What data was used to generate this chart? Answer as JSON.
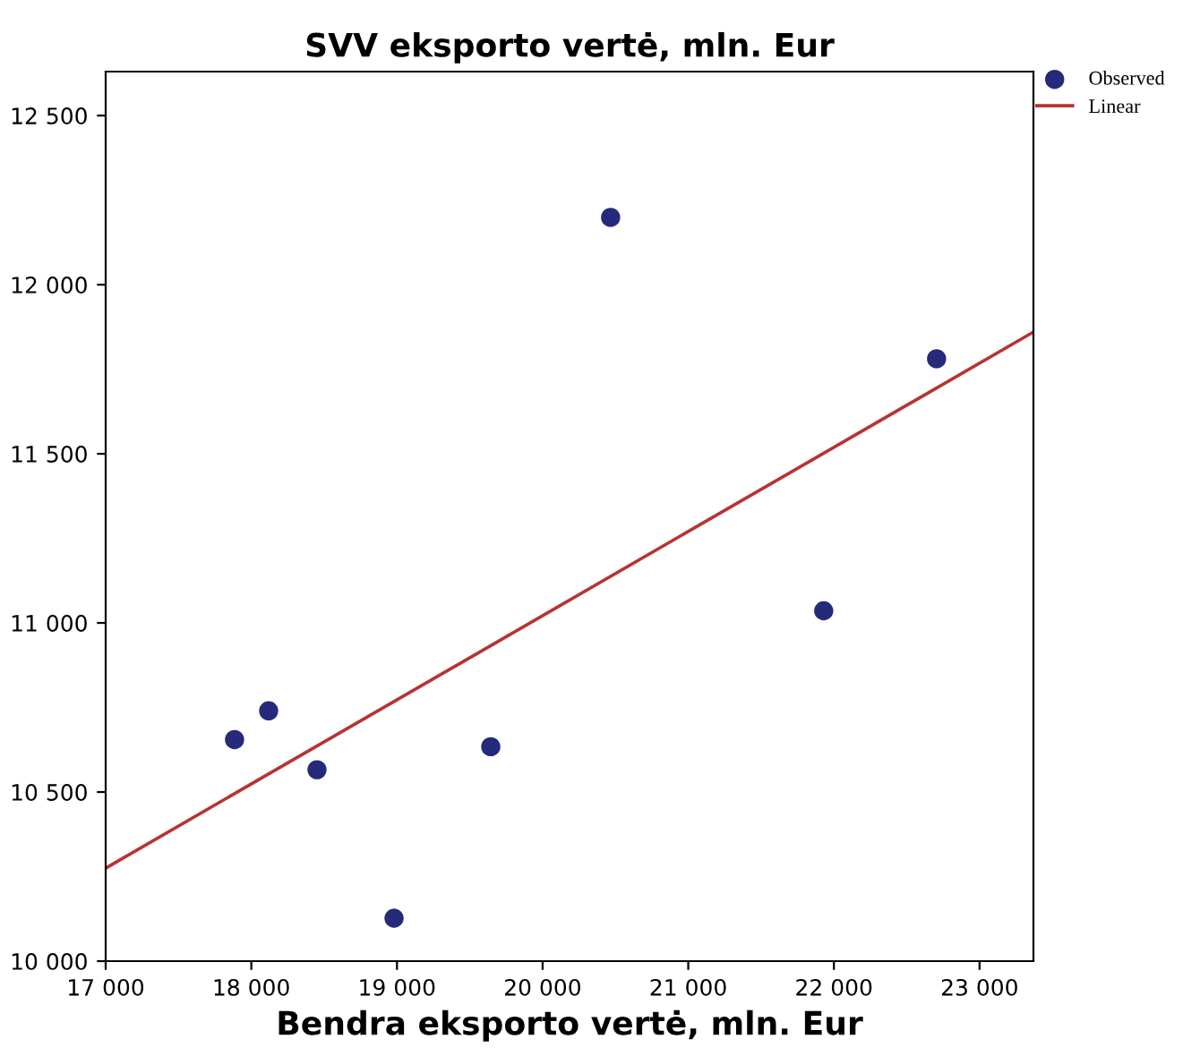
{
  "chart_data": {
    "type": "scatter",
    "title": "SVV eksporto vertė, mln. Eur",
    "xlabel": "Bendra eksporto vertė, mln. Eur",
    "xlim": [
      17000,
      23370
    ],
    "ylim": [
      10000,
      12630
    ],
    "xticks": [
      {
        "value": 17000,
        "label": "17 000"
      },
      {
        "value": 18000,
        "label": "18 000"
      },
      {
        "value": 19000,
        "label": "19 000"
      },
      {
        "value": 20000,
        "label": "20 000"
      },
      {
        "value": 21000,
        "label": "21 000"
      },
      {
        "value": 22000,
        "label": "22 000"
      },
      {
        "value": 23000,
        "label": "23 000"
      }
    ],
    "yticks": [
      {
        "value": 10000,
        "label": "10 000"
      },
      {
        "value": 10500,
        "label": "10 500"
      },
      {
        "value": 11000,
        "label": "11 000"
      },
      {
        "value": 11500,
        "label": "11 500"
      },
      {
        "value": 12000,
        "label": "12 000"
      },
      {
        "value": 12500,
        "label": "12 500"
      }
    ],
    "series": [
      {
        "name": "Observed",
        "color": "#262a7a",
        "marker": "circle",
        "x": [
          17885,
          18119,
          18451,
          18980,
          19644,
          20467,
          21930,
          22705
        ],
        "values": [
          10655,
          10740,
          10566,
          10127,
          10634,
          12199,
          11036,
          11781
        ]
      },
      {
        "name": "Linear",
        "type": "line",
        "color": "#b83232",
        "marker": "none",
        "line_style": "solid",
        "x": [
          17000,
          23370
        ],
        "values": [
          10275,
          11860
        ]
      }
    ],
    "legend": "top right",
    "grid": false
  }
}
